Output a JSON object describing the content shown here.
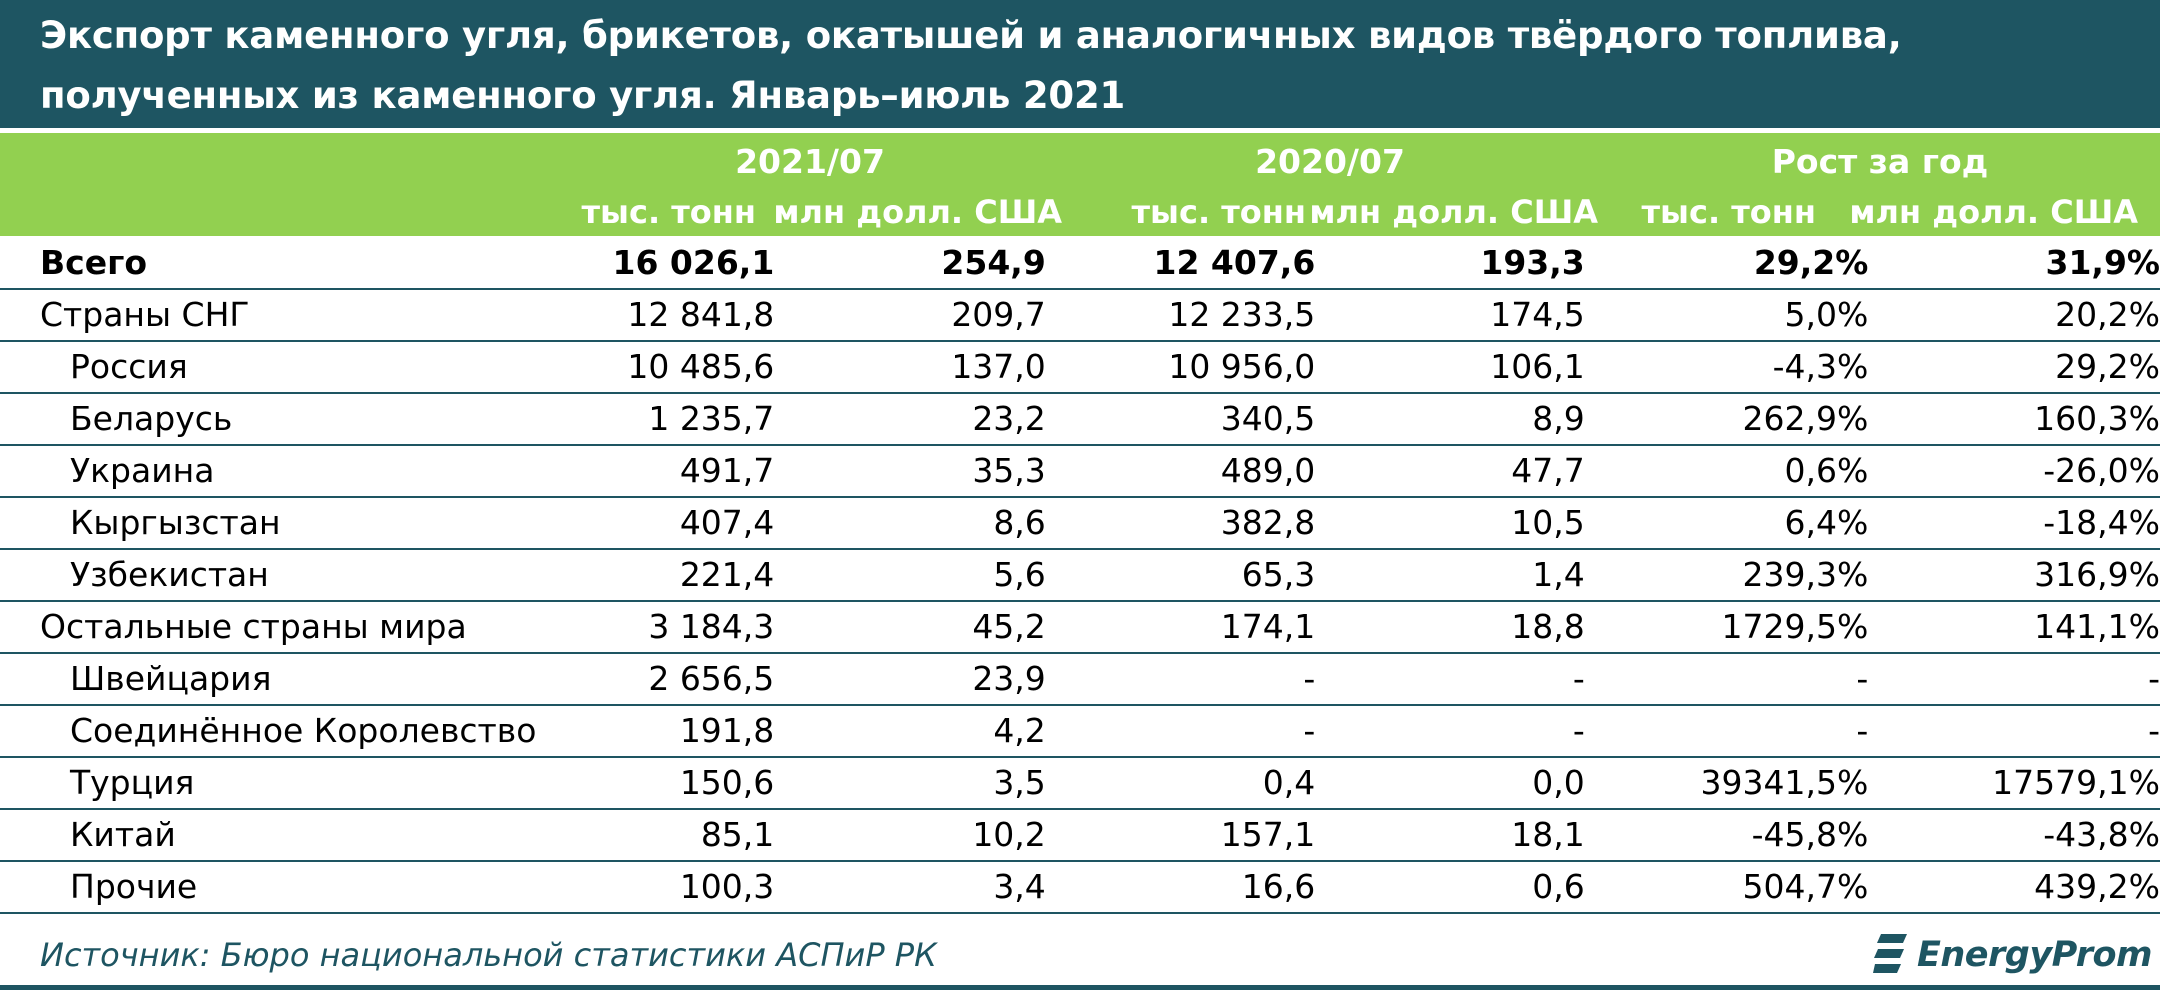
{
  "title": "Экспорт каменного угля, брикетов, окатышей и аналогичных видов твёрдого топлива, полученных из каменного угля. Январь–июль 2021",
  "source": "Источник: Бюро национальной статистики АСПиР РК",
  "logo_text": "EnergyProm",
  "colors": {
    "header_dark": "#1e5562",
    "header_green": "#92d050",
    "text": "#000000"
  },
  "chart_data": {
    "type": "table",
    "title": "Экспорт каменного угля, брикетов, окатышей и аналогичных видов твёрдого топлива, полученных из каменного угля. Январь–июль 2021",
    "column_groups": [
      {
        "label": "2021/07",
        "units": [
          "тыс. тонн",
          "млн долл. США"
        ]
      },
      {
        "label": "2020/07",
        "units": [
          "тыс. тонн",
          "млн долл. США"
        ]
      },
      {
        "label": "Рост за год",
        "units": [
          "тыс. тонн",
          "млн долл. США"
        ]
      }
    ],
    "rows": [
      {
        "name": "Всего",
        "level": 0,
        "bold": true,
        "values": [
          "16 026,1",
          "254,9",
          "12 407,6",
          "193,3",
          "29,2%",
          "31,9%"
        ]
      },
      {
        "name": "Страны СНГ",
        "level": 0,
        "bold": false,
        "values": [
          "12 841,8",
          "209,7",
          "12 233,5",
          "174,5",
          "5,0%",
          "20,2%"
        ]
      },
      {
        "name": "Россия",
        "level": 1,
        "bold": false,
        "values": [
          "10 485,6",
          "137,0",
          "10 956,0",
          "106,1",
          "-4,3%",
          "29,2%"
        ]
      },
      {
        "name": "Беларусь",
        "level": 1,
        "bold": false,
        "values": [
          "1 235,7",
          "23,2",
          "340,5",
          "8,9",
          "262,9%",
          "160,3%"
        ]
      },
      {
        "name": "Украина",
        "level": 1,
        "bold": false,
        "values": [
          "491,7",
          "35,3",
          "489,0",
          "47,7",
          "0,6%",
          "-26,0%"
        ]
      },
      {
        "name": "Кыргызстан",
        "level": 1,
        "bold": false,
        "values": [
          "407,4",
          "8,6",
          "382,8",
          "10,5",
          "6,4%",
          "-18,4%"
        ]
      },
      {
        "name": "Узбекистан",
        "level": 1,
        "bold": false,
        "values": [
          "221,4",
          "5,6",
          "65,3",
          "1,4",
          "239,3%",
          "316,9%"
        ]
      },
      {
        "name": "Остальные страны мира",
        "level": 0,
        "bold": false,
        "values": [
          "3 184,3",
          "45,2",
          "174,1",
          "18,8",
          "1729,5%",
          "141,1%"
        ]
      },
      {
        "name": "Швейцария",
        "level": 1,
        "bold": false,
        "values": [
          "2 656,5",
          "23,9",
          "-",
          "-",
          "-",
          "-"
        ]
      },
      {
        "name": "Соединённое Королевство",
        "level": 1,
        "bold": false,
        "values": [
          "191,8",
          "4,2",
          "-",
          "-",
          "-",
          "-"
        ]
      },
      {
        "name": "Турция",
        "level": 1,
        "bold": false,
        "values": [
          "150,6",
          "3,5",
          "0,4",
          "0,0",
          "39341,5%",
          "17579,1%"
        ]
      },
      {
        "name": "Китай",
        "level": 1,
        "bold": false,
        "values": [
          "85,1",
          "10,2",
          "157,1",
          "18,1",
          "-45,8%",
          "-43,8%"
        ]
      },
      {
        "name": "Прочие",
        "level": 1,
        "bold": false,
        "values": [
          "100,3",
          "3,4",
          "16,6",
          "0,6",
          "504,7%",
          "439,2%"
        ]
      }
    ]
  }
}
